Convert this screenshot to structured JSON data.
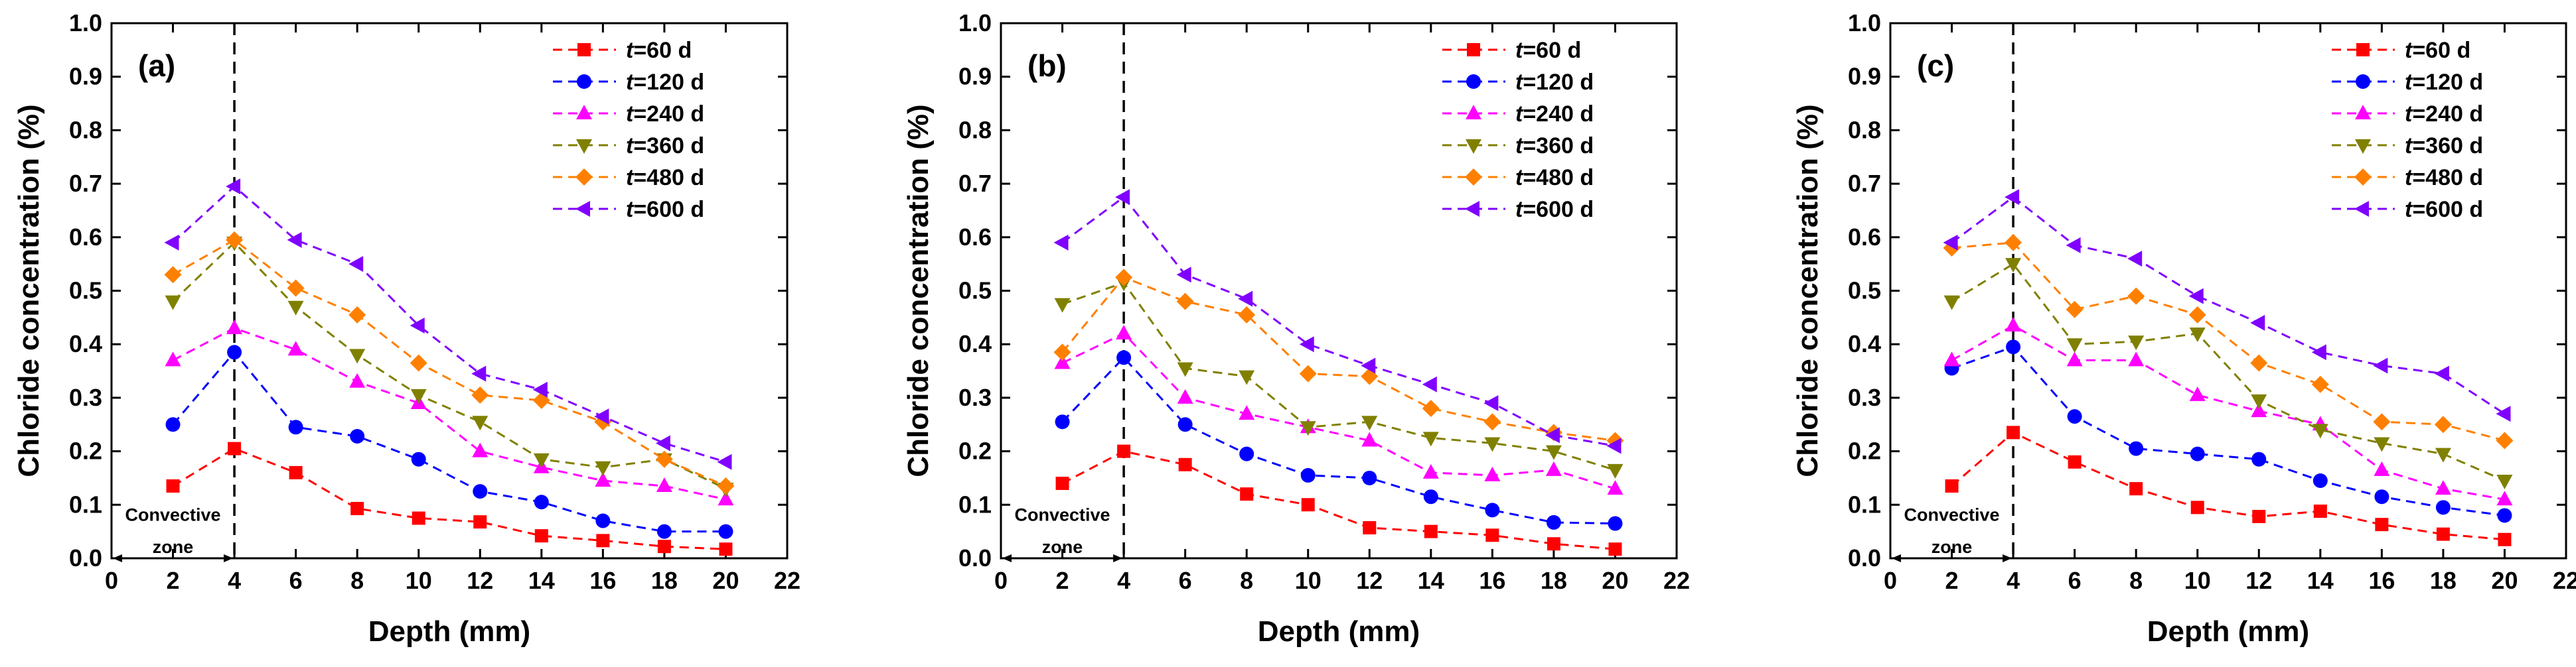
{
  "chart_data": [
    {
      "type": "line",
      "panel_label": "(a)",
      "xlabel": "Depth (mm)",
      "ylabel": "Chloride concentration (%)",
      "xlim": [
        0,
        22
      ],
      "ylim": [
        0,
        1.0
      ],
      "xticks": [
        "0",
        "2",
        "4",
        "6",
        "8",
        "10",
        "12",
        "14",
        "16",
        "18",
        "20",
        "22"
      ],
      "yticks": [
        "0.0",
        "0.1",
        "0.2",
        "0.3",
        "0.4",
        "0.5",
        "0.6",
        "0.7",
        "0.8",
        "0.9",
        "1.0"
      ],
      "x": [
        2,
        4,
        6,
        8,
        10,
        12,
        14,
        16,
        18,
        20
      ],
      "annotation": {
        "line1": "Convective",
        "line2": "zone",
        "x_from": 0,
        "x_to": 4
      },
      "series": [
        {
          "name": "t=60 d",
          "name_var": "t",
          "name_rest": "=60 d",
          "color": "#ff0000",
          "marker": "square",
          "values": [
            0.135,
            0.205,
            0.16,
            0.093,
            0.075,
            0.068,
            0.042,
            0.033,
            0.022,
            0.017
          ]
        },
        {
          "name": "t=120 d",
          "name_var": "t",
          "name_rest": "=120 d",
          "color": "#0000ff",
          "marker": "circle",
          "values": [
            0.25,
            0.385,
            0.245,
            0.228,
            0.185,
            0.125,
            0.105,
            0.07,
            0.05,
            0.05
          ]
        },
        {
          "name": "t=240 d",
          "name_var": "t",
          "name_rest": "=240 d",
          "color": "#ff00ff",
          "marker": "triangle-up",
          "values": [
            0.37,
            0.43,
            0.39,
            0.33,
            0.29,
            0.2,
            0.17,
            0.145,
            0.135,
            0.11
          ]
        },
        {
          "name": "t=360 d",
          "name_var": "t",
          "name_rest": "=360 d",
          "color": "#808000",
          "marker": "triangle-down",
          "values": [
            0.48,
            0.59,
            0.47,
            0.38,
            0.305,
            0.255,
            0.185,
            0.17,
            0.185,
            0.13
          ]
        },
        {
          "name": "t=480 d",
          "name_var": "t",
          "name_rest": "=480 d",
          "color": "#ff8000",
          "marker": "diamond",
          "values": [
            0.53,
            0.595,
            0.505,
            0.455,
            0.365,
            0.305,
            0.295,
            0.255,
            0.185,
            0.135
          ]
        },
        {
          "name": "t=600 d",
          "name_var": "t",
          "name_rest": "=600 d",
          "color": "#8000ff",
          "marker": "triangle-left",
          "values": [
            0.59,
            0.695,
            0.595,
            0.55,
            0.435,
            0.345,
            0.315,
            0.265,
            0.215,
            0.18
          ]
        }
      ]
    },
    {
      "type": "line",
      "panel_label": "(b)",
      "xlabel": "Depth (mm)",
      "ylabel": "Chloride concentration (%)",
      "xlim": [
        0,
        22
      ],
      "ylim": [
        0,
        1.0
      ],
      "xticks": [
        "0",
        "2",
        "4",
        "6",
        "8",
        "10",
        "12",
        "14",
        "16",
        "18",
        "20",
        "22"
      ],
      "yticks": [
        "0.0",
        "0.1",
        "0.2",
        "0.3",
        "0.4",
        "0.5",
        "0.6",
        "0.7",
        "0.8",
        "0.9",
        "1.0"
      ],
      "x": [
        2,
        4,
        6,
        8,
        10,
        12,
        14,
        16,
        18,
        20
      ],
      "annotation": {
        "line1": "Convective",
        "line2": "zone",
        "x_from": 0,
        "x_to": 4
      },
      "series": [
        {
          "name": "t=60 d",
          "name_var": "t",
          "name_rest": "=60 d",
          "color": "#ff0000",
          "marker": "square",
          "values": [
            0.14,
            0.2,
            0.175,
            0.12,
            0.1,
            0.057,
            0.05,
            0.043,
            0.027,
            0.017
          ]
        },
        {
          "name": "t=120 d",
          "name_var": "t",
          "name_rest": "=120 d",
          "color": "#0000ff",
          "marker": "circle",
          "values": [
            0.255,
            0.375,
            0.25,
            0.195,
            0.155,
            0.15,
            0.115,
            0.09,
            0.067,
            0.065
          ]
        },
        {
          "name": "t=240 d",
          "name_var": "t",
          "name_rest": "=240 d",
          "color": "#ff00ff",
          "marker": "triangle-up",
          "values": [
            0.365,
            0.42,
            0.3,
            0.27,
            0.245,
            0.22,
            0.16,
            0.155,
            0.165,
            0.13
          ]
        },
        {
          "name": "t=360 d",
          "name_var": "t",
          "name_rest": "=360 d",
          "color": "#808000",
          "marker": "triangle-down",
          "values": [
            0.475,
            0.515,
            0.355,
            0.34,
            0.245,
            0.255,
            0.225,
            0.215,
            0.2,
            0.165
          ]
        },
        {
          "name": "t=480 d",
          "name_var": "t",
          "name_rest": "=480 d",
          "color": "#ff8000",
          "marker": "diamond",
          "values": [
            0.385,
            0.525,
            0.48,
            0.455,
            0.345,
            0.34,
            0.28,
            0.255,
            0.235,
            0.22
          ]
        },
        {
          "name": "t=600 d",
          "name_var": "t",
          "name_rest": "=600 d",
          "color": "#8000ff",
          "marker": "triangle-left",
          "values": [
            0.59,
            0.675,
            0.53,
            0.485,
            0.4,
            0.36,
            0.325,
            0.29,
            0.23,
            0.21
          ]
        }
      ]
    },
    {
      "type": "line",
      "panel_label": "(c)",
      "xlabel": "Depth (mm)",
      "ylabel": "Chloride concentration (%)",
      "xlim": [
        0,
        22
      ],
      "ylim": [
        0,
        1.0
      ],
      "xticks": [
        "0",
        "2",
        "4",
        "6",
        "8",
        "10",
        "12",
        "14",
        "16",
        "18",
        "20",
        "22"
      ],
      "yticks": [
        "0.0",
        "0.1",
        "0.2",
        "0.3",
        "0.4",
        "0.5",
        "0.6",
        "0.7",
        "0.8",
        "0.9",
        "1.0"
      ],
      "x": [
        2,
        4,
        6,
        8,
        10,
        12,
        14,
        16,
        18,
        20
      ],
      "annotation": {
        "line1": "Convective",
        "line2": "zone",
        "x_from": 0,
        "x_to": 4
      },
      "series": [
        {
          "name": "t=60 d",
          "name_var": "t",
          "name_rest": "=60 d",
          "color": "#ff0000",
          "marker": "square",
          "values": [
            0.135,
            0.235,
            0.18,
            0.13,
            0.095,
            0.078,
            0.088,
            0.063,
            0.045,
            0.035
          ]
        },
        {
          "name": "t=120 d",
          "name_var": "t",
          "name_rest": "=120 d",
          "color": "#0000ff",
          "marker": "circle",
          "values": [
            0.355,
            0.395,
            0.265,
            0.205,
            0.195,
            0.185,
            0.145,
            0.115,
            0.095,
            0.08
          ]
        },
        {
          "name": "t=240 d",
          "name_var": "t",
          "name_rest": "=240 d",
          "color": "#ff00ff",
          "marker": "triangle-up",
          "values": [
            0.37,
            0.435,
            0.37,
            0.37,
            0.305,
            0.275,
            0.25,
            0.165,
            0.13,
            0.11
          ]
        },
        {
          "name": "t=360 d",
          "name_var": "t",
          "name_rest": "=360 d",
          "color": "#808000",
          "marker": "triangle-down",
          "values": [
            0.48,
            0.55,
            0.4,
            0.405,
            0.42,
            0.295,
            0.24,
            0.215,
            0.195,
            0.145
          ]
        },
        {
          "name": "t=480 d",
          "name_var": "t",
          "name_rest": "=480 d",
          "color": "#ff8000",
          "marker": "diamond",
          "values": [
            0.58,
            0.59,
            0.465,
            0.49,
            0.455,
            0.365,
            0.325,
            0.255,
            0.25,
            0.22
          ]
        },
        {
          "name": "t=600 d",
          "name_var": "t",
          "name_rest": "=600 d",
          "color": "#8000ff",
          "marker": "triangle-left",
          "values": [
            0.59,
            0.675,
            0.585,
            0.56,
            0.49,
            0.44,
            0.385,
            0.36,
            0.345,
            0.27
          ]
        }
      ]
    }
  ]
}
